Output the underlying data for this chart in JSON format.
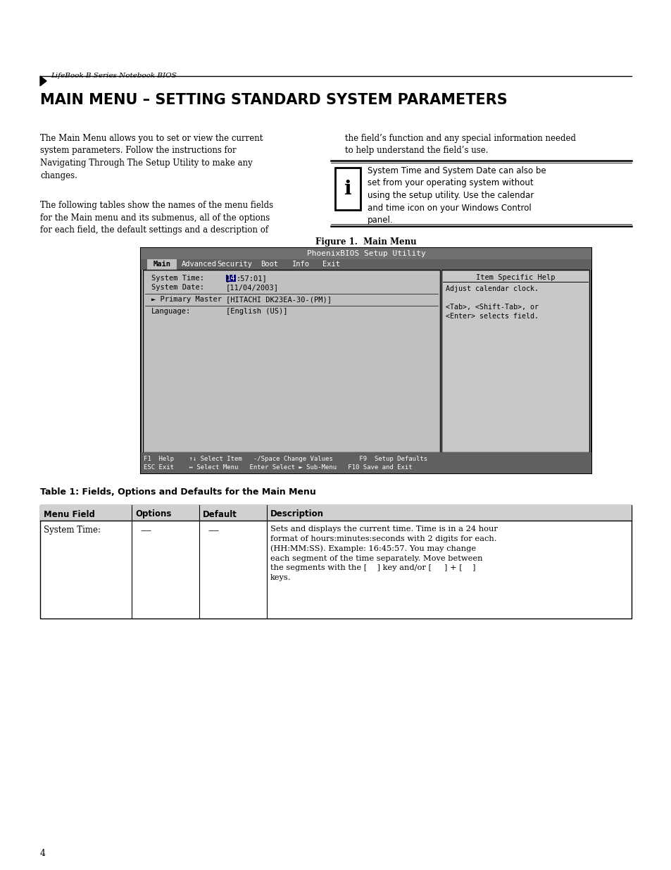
{
  "page_bg": "#ffffff",
  "header_text": "LifeBook B Series Notebook BIOS",
  "title": "MAIN MENU – SETTING STANDARD SYSTEM PARAMETERS",
  "para1_left": "The Main Menu allows you to set or view the current\nsystem parameters. Follow the instructions for\nNavigating Through The Setup Utility to make any\nchanges.",
  "para2_left": "The following tables show the names of the menu fields\nfor the Main menu and its submenus, all of the options\nfor each field, the default settings and a description of",
  "para1_right": "the field’s function and any special information needed\nto help understand the field’s use.",
  "note_text": "System Time and System Date can also be\nset from your operating system without\nusing the setup utility. Use the calendar\nand time icon on your Windows Control\npanel.",
  "figure_caption": "Figure 1.  Main Menu",
  "bios_title": "PhoenixBIOS Setup Utility",
  "menu_items": [
    "Main",
    "Advanced",
    "Security",
    "Boot",
    "Info",
    "Exit"
  ],
  "bios_help_title": "Item Specific Help",
  "bios_help_lines": [
    "Adjust calendar clock.",
    "",
    "<Tab>, <Shift-Tab>, or",
    "<Enter> selects field."
  ],
  "bios_status_bar1": "F1  Help    ↑↓ Select Item   -/Space Change Values       F9  Setup Defaults",
  "bios_status_bar2": "ESC Exit    ↔ Select Menu   Enter Select ► Sub-Menu   F10 Save and Exit",
  "table_title": "Table 1: Fields, Options and Defaults for the Main Menu",
  "table_headers": [
    "Menu Field",
    "Options",
    "Default",
    "Description"
  ],
  "table_row_col0": "System Time:",
  "table_row_col1": "—",
  "table_row_col2": "—",
  "table_row_col3": "Sets and displays the current time. Time is in a 24 hour\nformat of hours:minutes:seconds with 2 digits for each.\n(HH:MM:SS). Example: 16:45:57. You may change\neach segment of the time separately. Move between\nthe segments with the [    ] key and/or [     ] + [    ]\nkeys.",
  "page_number": "4"
}
